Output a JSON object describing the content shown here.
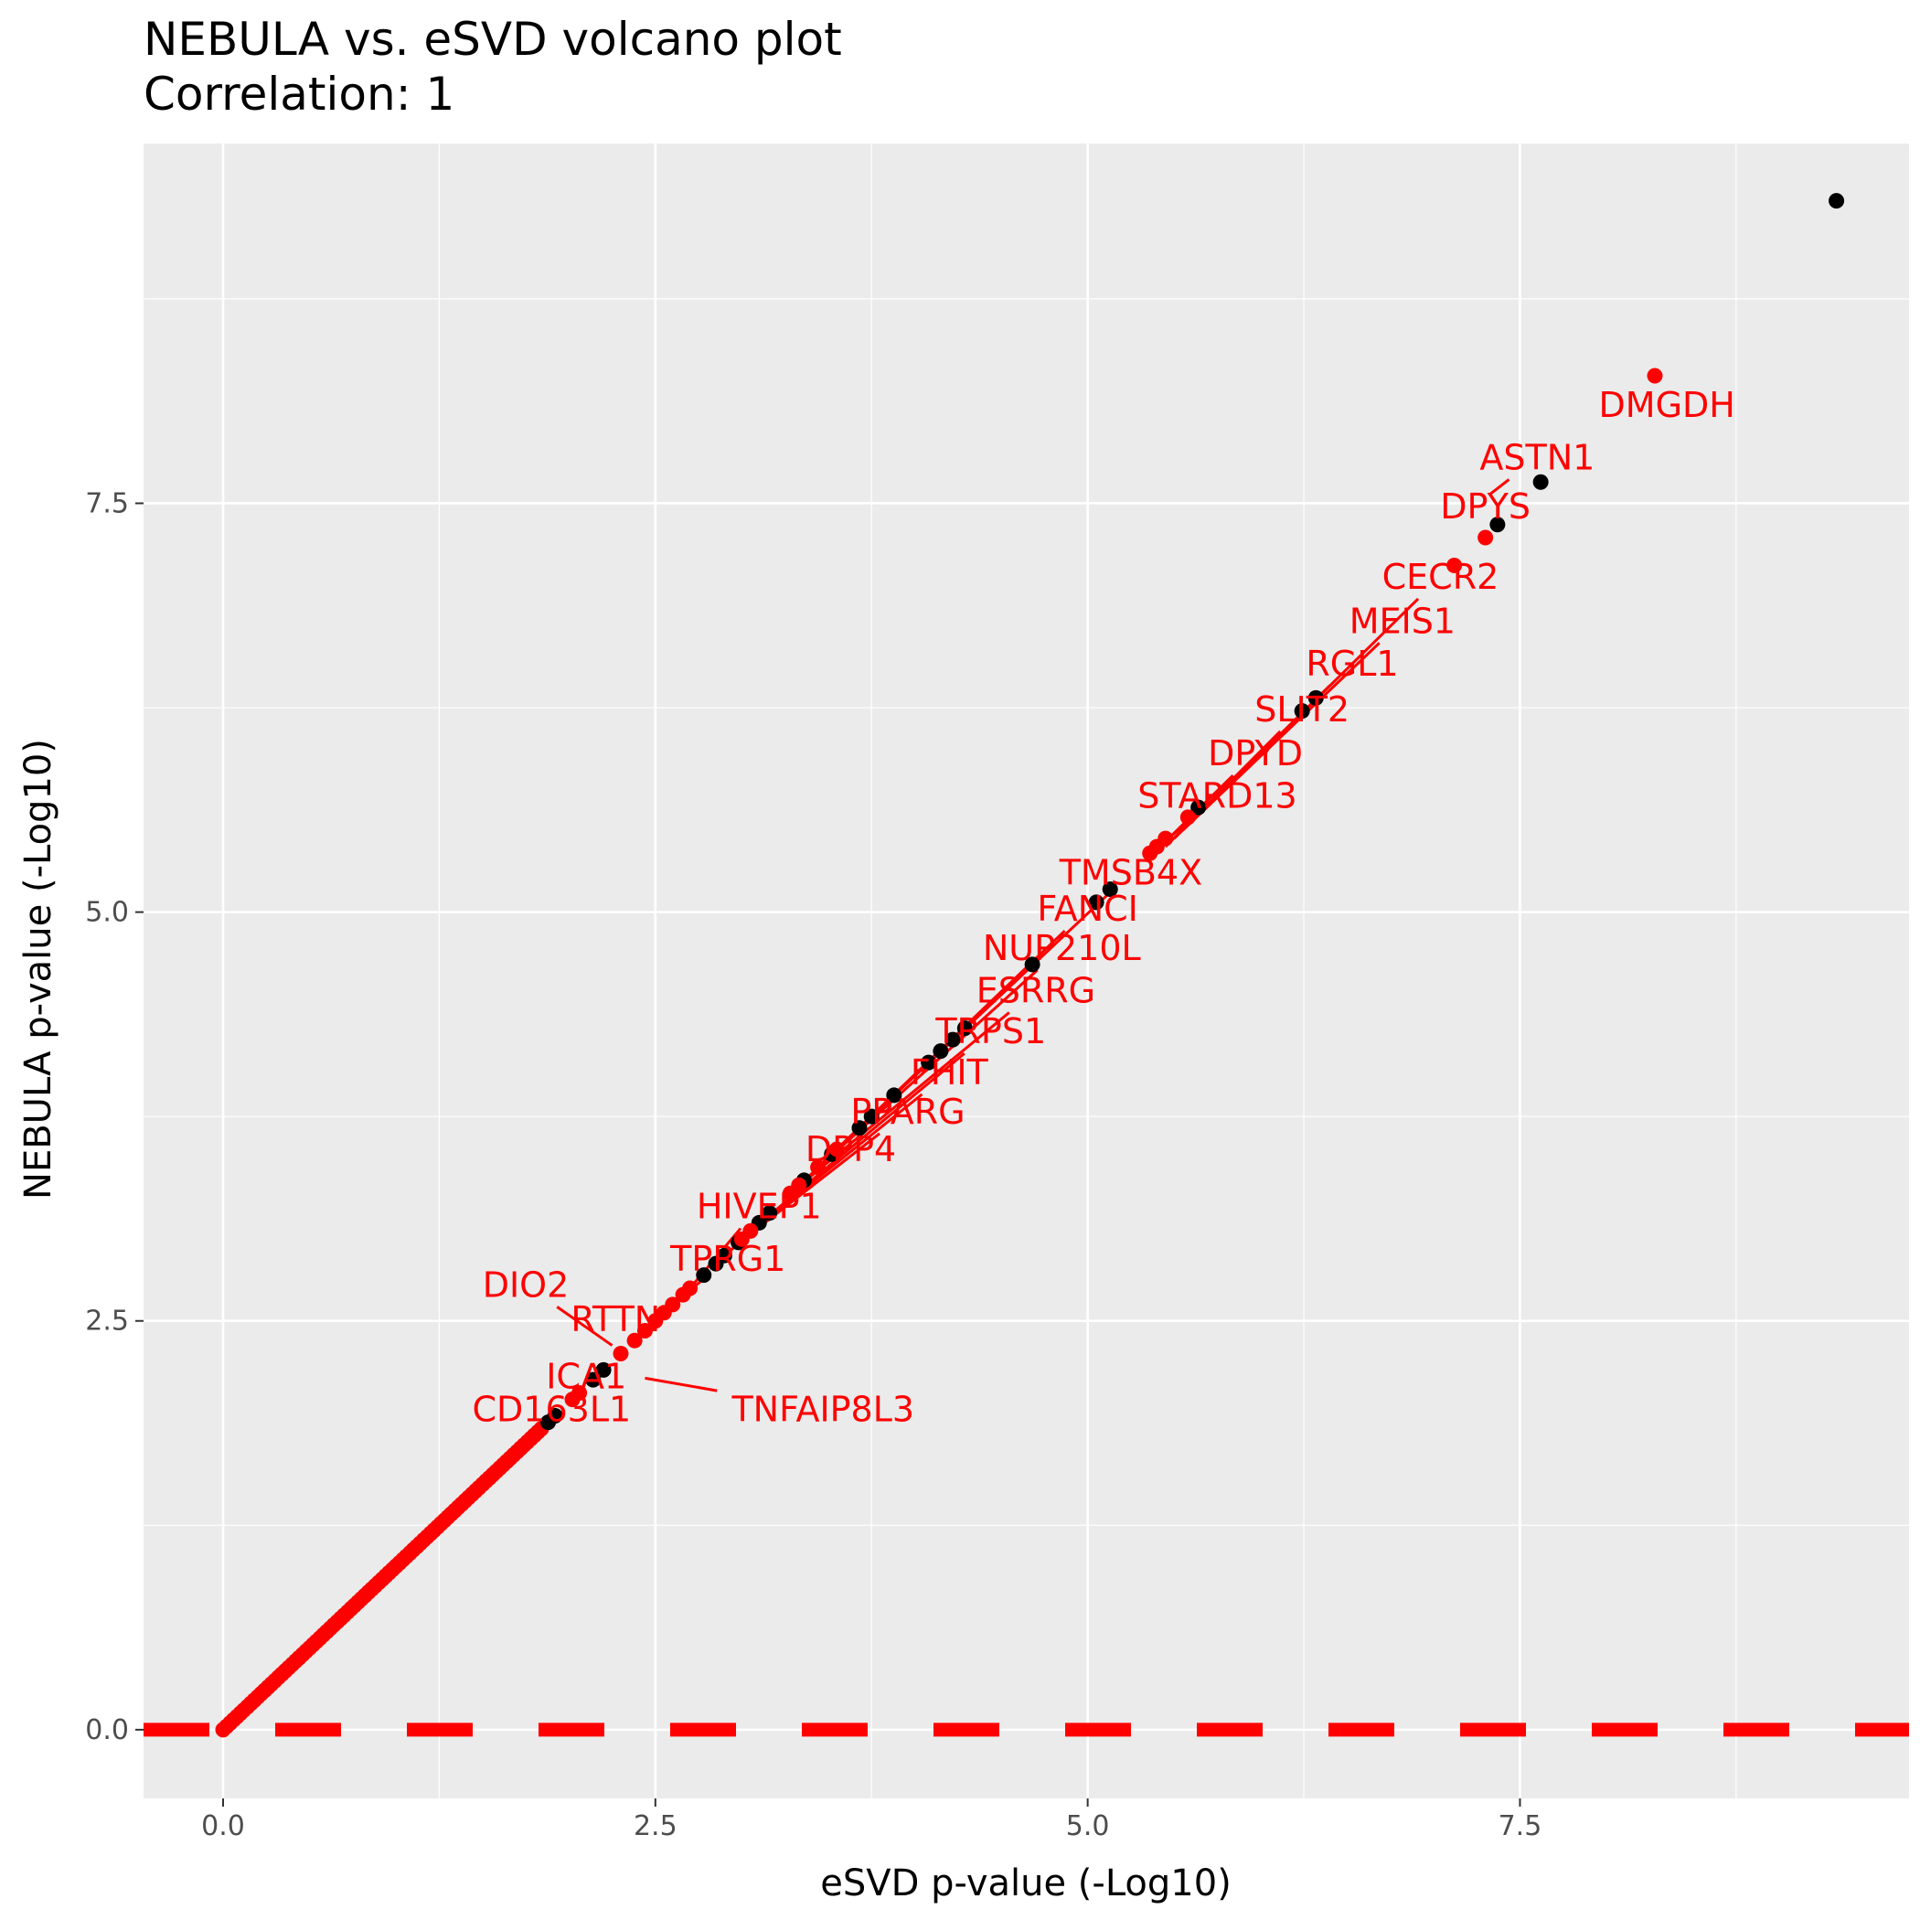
{
  "chart_data": {
    "type": "scatter",
    "title": "NEBULA vs. eSVD volcano plot",
    "subtitle": "Correlation: 1",
    "xlabel": "eSVD p-value (-Log10)",
    "ylabel": "NEBULA p-value (-Log10)",
    "xlim": [
      -0.46,
      9.75
    ],
    "ylim": [
      -0.42,
      9.7
    ],
    "x_ticks": [
      0.0,
      2.5,
      5.0,
      7.5
    ],
    "x_tick_labels": [
      "0.0",
      "2.5",
      "5.0",
      "7.5"
    ],
    "y_ticks": [
      0.0,
      2.5,
      5.0,
      7.5
    ],
    "y_tick_labels": [
      "0.0",
      "2.5",
      "5.0",
      "7.5"
    ],
    "grid": true,
    "background": "#ebebeb",
    "reference_line": {
      "y": 0,
      "style": "dashed",
      "color": "#ff0000"
    },
    "colors": {
      "not_significant": "#000000",
      "significant": "#ff0000"
    },
    "points_black": [
      [
        9.33,
        9.35
      ],
      [
        7.62,
        7.63
      ],
      [
        7.37,
        7.37
      ],
      [
        6.32,
        6.31
      ],
      [
        6.24,
        6.23
      ],
      [
        5.64,
        5.64
      ],
      [
        5.13,
        5.14
      ],
      [
        5.05,
        5.06
      ],
      [
        4.68,
        4.68
      ],
      [
        4.29,
        4.29
      ],
      [
        4.22,
        4.22
      ],
      [
        4.15,
        4.15
      ],
      [
        4.08,
        4.08
      ],
      [
        3.88,
        3.88
      ],
      [
        3.75,
        3.75
      ],
      [
        3.68,
        3.68
      ],
      [
        3.52,
        3.52
      ],
      [
        3.36,
        3.36
      ],
      [
        3.16,
        3.16
      ],
      [
        3.1,
        3.1
      ],
      [
        2.98,
        2.98
      ],
      [
        2.9,
        2.9
      ],
      [
        2.85,
        2.85
      ],
      [
        2.78,
        2.78
      ],
      [
        2.2,
        2.2
      ],
      [
        2.14,
        2.14
      ],
      [
        1.92,
        1.92
      ],
      [
        1.88,
        1.88
      ]
    ],
    "points_red": [
      [
        8.28,
        8.28
      ],
      [
        7.3,
        7.29
      ],
      [
        7.12,
        7.12
      ],
      [
        5.58,
        5.58
      ],
      [
        5.45,
        5.45
      ],
      [
        5.4,
        5.4
      ],
      [
        5.36,
        5.36
      ],
      [
        3.55,
        3.55
      ],
      [
        3.44,
        3.44
      ],
      [
        3.33,
        3.33
      ],
      [
        3.28,
        3.28
      ],
      [
        3.05,
        3.05
      ],
      [
        3.0,
        3.0
      ],
      [
        2.7,
        2.7
      ],
      [
        2.66,
        2.66
      ],
      [
        2.6,
        2.6
      ],
      [
        2.55,
        2.55
      ],
      [
        2.5,
        2.5
      ],
      [
        2.44,
        2.44
      ],
      [
        2.38,
        2.38
      ],
      [
        2.3,
        2.3
      ],
      [
        2.06,
        2.06
      ],
      [
        2.02,
        2.02
      ]
    ],
    "red_dense_range": [
      0.0,
      1.85
    ],
    "labels": [
      {
        "text": "DMGDH",
        "x": 8.35,
        "y": 8.1,
        "px": 8.28,
        "py": 8.28
      },
      {
        "text": "ASTN1",
        "x": 7.6,
        "y": 7.78,
        "px": 7.32,
        "py": 7.55
      },
      {
        "text": "DPYS",
        "x": 7.3,
        "y": 7.48,
        "px": 7.3,
        "py": 7.29
      },
      {
        "text": "CECR2",
        "x": 7.04,
        "y": 7.05,
        "px": 5.6,
        "py": 5.55
      },
      {
        "text": "MEIS1",
        "x": 6.82,
        "y": 6.78,
        "px": 5.55,
        "py": 5.5
      },
      {
        "text": "RGL1",
        "x": 6.53,
        "y": 6.52,
        "px": 5.5,
        "py": 5.45
      },
      {
        "text": "SLIT2",
        "x": 6.24,
        "y": 6.24,
        "px": 5.45,
        "py": 5.4
      },
      {
        "text": "DPYD",
        "x": 5.97,
        "y": 5.97,
        "px": 5.4,
        "py": 5.38
      },
      {
        "text": "STARD13",
        "x": 5.75,
        "y": 5.71,
        "px": 5.36,
        "py": 5.35
      },
      {
        "text": "TMSB4X",
        "x": 5.25,
        "y": 5.24,
        "px": 3.55,
        "py": 3.55
      },
      {
        "text": "FANCI",
        "x": 5.0,
        "y": 5.02,
        "px": 3.44,
        "py": 3.44
      },
      {
        "text": "NUP210L",
        "x": 4.85,
        "y": 4.78,
        "px": 3.33,
        "py": 3.33
      },
      {
        "text": "ESRRG",
        "x": 4.7,
        "y": 4.52,
        "px": 3.28,
        "py": 3.28
      },
      {
        "text": "TRPS1",
        "x": 4.44,
        "y": 4.27,
        "px": 3.05,
        "py": 3.05
      },
      {
        "text": "FHIT",
        "x": 4.2,
        "y": 4.02,
        "px": 3.0,
        "py": 3.0
      },
      {
        "text": "PPARG",
        "x": 3.96,
        "y": 3.78,
        "px": 2.95,
        "py": 2.95
      },
      {
        "text": "DPP4",
        "x": 3.63,
        "y": 3.55,
        "px": 2.9,
        "py": 2.9
      },
      {
        "text": "HIVEP1",
        "x": 3.1,
        "y": 3.2,
        "px": 2.7,
        "py": 2.7
      },
      {
        "text": "TPRG1",
        "x": 2.92,
        "y": 2.88,
        "px": 2.6,
        "py": 2.6
      },
      {
        "text": "DIO2",
        "x": 1.75,
        "y": 2.72,
        "px": 2.25,
        "py": 2.35
      },
      {
        "text": "RTTN",
        "x": 2.27,
        "y": 2.51,
        "px": 2.5,
        "py": 2.5
      },
      {
        "text": "ICA1",
        "x": 2.1,
        "y": 2.16,
        "px": 2.06,
        "py": 2.06
      },
      {
        "text": "TNFAIP8L3",
        "x": 3.47,
        "y": 1.96,
        "px": 2.44,
        "py": 2.15
      },
      {
        "text": "CD163L1",
        "x": 1.9,
        "y": 1.96,
        "px": 2.02,
        "py": 2.02
      }
    ]
  }
}
